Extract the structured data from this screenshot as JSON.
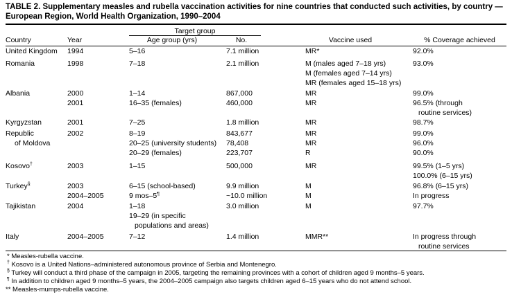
{
  "header": {
    "title": "TABLE 2. Supplementary measles and rubella vaccination activities for nine countries that conducted such activities, by country — European Region, World Health Organization, 1990–2004"
  },
  "table": {
    "group_header": "Target group",
    "columns": [
      "Country",
      "Year",
      "Age group (yrs)",
      "No.",
      "Vaccine used",
      "% Coverage achieved"
    ],
    "rows": [
      {
        "country": [
          "United Kingdom"
        ],
        "year": [
          "1994"
        ],
        "age": [
          "5–16"
        ],
        "number": [
          "7.1 million"
        ],
        "vaccine": [
          "MR*"
        ],
        "coverage": [
          "92.0%"
        ]
      },
      {
        "country": [
          "Romania"
        ],
        "year": [
          "1998"
        ],
        "age": [
          "7–18"
        ],
        "number": [
          "2.1 million"
        ],
        "vaccine": [
          "M (males aged 7–18 yrs)",
          "M (females aged 7–14 yrs)",
          "MR (females aged 15–18 yrs)"
        ],
        "coverage": [
          "93.0%"
        ]
      },
      {
        "country": [
          "Albania"
        ],
        "year": [
          "2000"
        ],
        "age": [
          "1–14"
        ],
        "number": [
          "867,000"
        ],
        "vaccine": [
          "MR"
        ],
        "coverage": [
          "99.0%"
        ]
      },
      {
        "country": [],
        "year": [
          "2001"
        ],
        "age": [
          "16–35 (females)"
        ],
        "number": [
          "460,000"
        ],
        "vaccine": [
          "MR"
        ],
        "coverage": [
          "96.5% (through",
          "routine services)"
        ]
      },
      {
        "country": [
          "Kyrgyzstan"
        ],
        "year": [
          "2001"
        ],
        "age": [
          "7–25"
        ],
        "number": [
          "1.8 million"
        ],
        "vaccine": [
          "MR"
        ],
        "coverage": [
          "98.7%"
        ]
      },
      {
        "country": [
          "Republic",
          "of Moldova"
        ],
        "year": [
          "2002"
        ],
        "age": [
          "8–19",
          "20–25 (university students)",
          "20–29 (females)"
        ],
        "number": [
          "843,677",
          "78,408",
          "223,707"
        ],
        "vaccine": [
          "MR",
          "MR",
          "R"
        ],
        "coverage": [
          "99.0%",
          "96.0%",
          "90.0%"
        ]
      },
      {
        "country": [
          {
            "text": "Kosovo",
            "sup": "†"
          }
        ],
        "year": [
          "2003"
        ],
        "age": [
          "1–15"
        ],
        "number": [
          "500,000"
        ],
        "vaccine": [
          "MR"
        ],
        "coverage": [
          "99.5% (1–5 yrs)",
          "100.0% (6–15 yrs)"
        ]
      },
      {
        "country": [
          {
            "text": "Turkey",
            "sup": "§"
          }
        ],
        "year": [
          "2003",
          "2004–2005"
        ],
        "age": [
          "6–15 (school-based)",
          {
            "text": "9 mos–5",
            "sup": "¶"
          }
        ],
        "number": [
          "9.9 million",
          "~10.0 million"
        ],
        "vaccine": [
          "M",
          "M"
        ],
        "coverage": [
          "96.8% (6–15 yrs)",
          "In progress"
        ]
      },
      {
        "country": [
          "Tajikistan"
        ],
        "year": [
          "2004"
        ],
        "age": [
          "1–18",
          "19–29 (in specific",
          "populations and areas)"
        ],
        "number": [
          "3.0 million"
        ],
        "vaccine": [
          "M"
        ],
        "coverage": [
          "97.7%"
        ]
      },
      {
        "country": [
          "Italy"
        ],
        "year": [
          "2004–2005"
        ],
        "age": [
          "7–12"
        ],
        "number": [
          "1.4 million"
        ],
        "vaccine": [
          "MMR**"
        ],
        "coverage": [
          "In progress through",
          "routine services"
        ]
      }
    ]
  },
  "footnotes": [
    {
      "mark": "*",
      "text": " Measles-rubella vaccine."
    },
    {
      "mark": "†",
      "text": " Kosovo is a United Nations–administered autonomous province of Serbia and Montenegro."
    },
    {
      "mark": "§",
      "text": " Turkey will conduct a third phase of the campaign in 2005, targeting the remaining provinces with a cohort of children aged 9 months–5 years."
    },
    {
      "mark": "¶",
      "text": " In addition to children aged 9 months–5 years, the 2004–2005 campaign also targets children aged 6–15 years who do not attend school."
    },
    {
      "mark": "**",
      "text": " Measles-mumps-rubella vaccine."
    }
  ]
}
